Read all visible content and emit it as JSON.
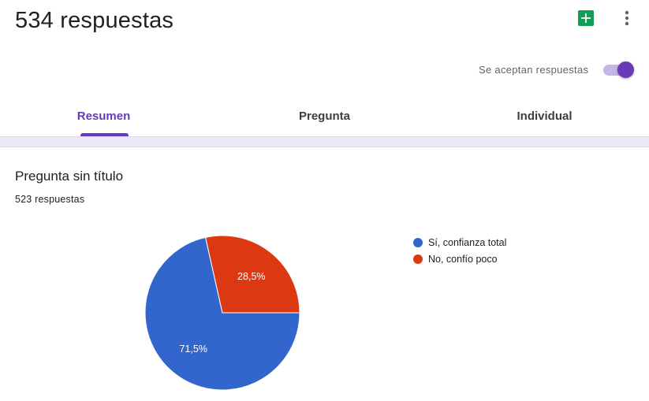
{
  "header": {
    "title": "534 respuestas",
    "accepting_label": "Se aceptan respuestas",
    "accepting_on": true,
    "icons": [
      "sheets-icon",
      "more-vert-icon"
    ]
  },
  "tabs": [
    {
      "label": "Resumen",
      "active": true
    },
    {
      "label": "Pregunta",
      "active": false
    },
    {
      "label": "Individual",
      "active": false
    }
  ],
  "question": {
    "title": "Pregunta sin título",
    "response_count": "523 respuestas"
  },
  "colors": {
    "accent": "#673ab7",
    "series1": "#3366cc",
    "series2": "#dc3912",
    "sheets": "#0f9d58"
  },
  "chart_data": {
    "type": "pie",
    "categories": [
      "Sí, confianza total",
      "No, confío poco"
    ],
    "values": [
      71.5,
      28.5
    ],
    "labels": [
      "71,5%",
      "28,5%"
    ],
    "legend": "right"
  }
}
